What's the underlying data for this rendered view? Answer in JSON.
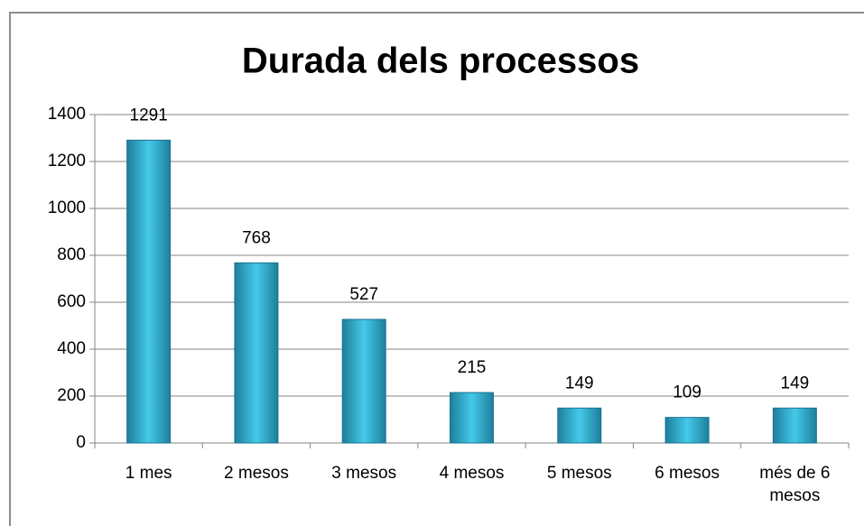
{
  "chart_data": {
    "type": "bar",
    "title": "Durada dels processos",
    "categories": [
      "1 mes",
      "2 mesos",
      "3 mesos",
      "4 mesos",
      "5 mesos",
      "6 mesos",
      "més de 6 mesos"
    ],
    "values": [
      1291,
      768,
      527,
      215,
      149,
      109,
      149
    ],
    "color": "#33b8dc",
    "ylim": [
      0,
      1400
    ],
    "yticks": [
      0,
      200,
      400,
      600,
      800,
      1000,
      1200,
      1400
    ],
    "grid": true
  }
}
